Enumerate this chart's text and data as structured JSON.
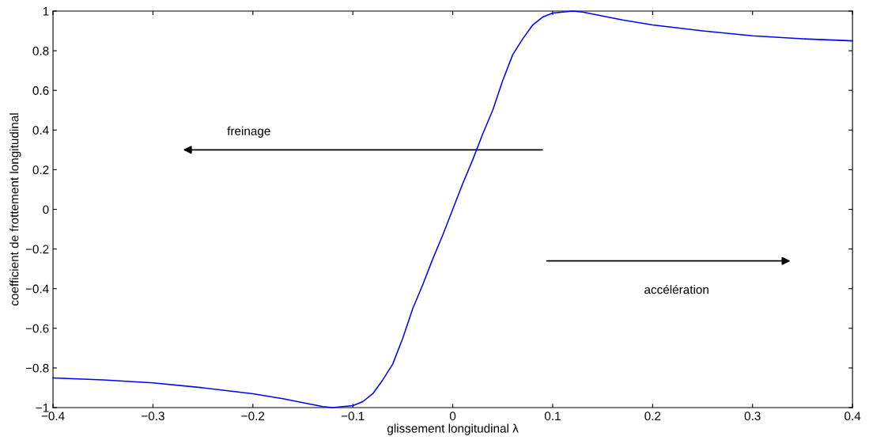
{
  "chart_data": {
    "type": "line",
    "xlabel": "glissement longitudinal λ",
    "ylabel": "coefficient de frottement longitudinal",
    "x": [
      -0.4,
      -0.35,
      -0.3,
      -0.25,
      -0.2,
      -0.17,
      -0.15,
      -0.13,
      -0.12,
      -0.11,
      -0.1,
      -0.09,
      -0.08,
      -0.07,
      -0.06,
      -0.05,
      -0.04,
      -0.03,
      -0.02,
      -0.01,
      0,
      0.01,
      0.02,
      0.03,
      0.04,
      0.05,
      0.06,
      0.07,
      0.08,
      0.09,
      0.1,
      0.11,
      0.12,
      0.13,
      0.15,
      0.17,
      0.2,
      0.25,
      0.3,
      0.35,
      0.4
    ],
    "series": [
      {
        "color": "#0000ff",
        "values": [
          -0.85,
          -0.86,
          -0.875,
          -0.9,
          -0.93,
          -0.955,
          -0.975,
          -0.995,
          -1.0,
          -0.995,
          -0.99,
          -0.97,
          -0.93,
          -0.86,
          -0.78,
          -0.65,
          -0.5,
          -0.38,
          -0.25,
          -0.13,
          0.0,
          0.13,
          0.25,
          0.38,
          0.5,
          0.65,
          0.78,
          0.86,
          0.93,
          0.97,
          0.99,
          0.995,
          1.0,
          0.995,
          0.975,
          0.955,
          0.93,
          0.9,
          0.875,
          0.86,
          0.85
        ]
      }
    ],
    "xlim": [
      -0.4,
      0.4
    ],
    "xticks": [
      {
        "value": -0.4,
        "label": "−0.4"
      },
      {
        "value": -0.3,
        "label": "−0.3"
      },
      {
        "value": -0.2,
        "label": "−0.2"
      },
      {
        "value": -0.1,
        "label": "−0.1"
      },
      0,
      0.1,
      0.2,
      0.3,
      0.4
    ],
    "ylim": [
      -1,
      1
    ],
    "yticks": [
      {
        "value": -1,
        "label": "−1"
      },
      {
        "value": -0.8,
        "label": "−0.8"
      },
      {
        "value": -0.6,
        "label": "−0.6"
      },
      {
        "value": -0.4,
        "label": "−0.4"
      },
      {
        "value": -0.2,
        "label": "−0.2"
      },
      0,
      0.2,
      0.4,
      0.6,
      0.8,
      1
    ],
    "annotations": [
      "freinage",
      "accélération"
    ],
    "grid": false,
    "legend": false,
    "marker": "none",
    "line_style": "solid"
  }
}
